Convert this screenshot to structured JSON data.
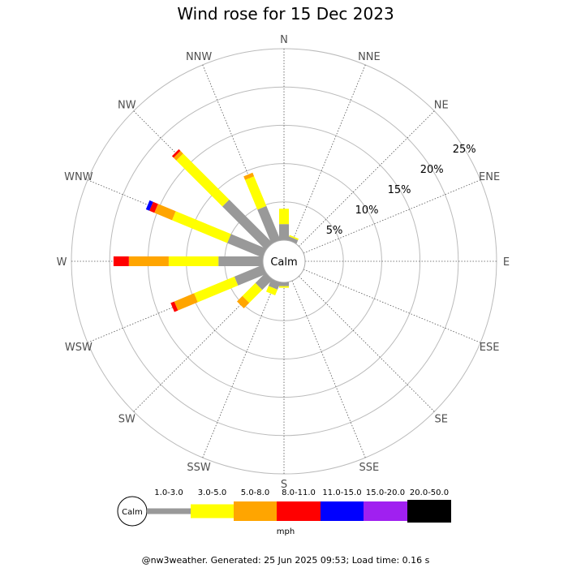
{
  "chart_data": {
    "type": "windrose",
    "title": "Wind rose for 15 Dec 2023",
    "center_label": "Calm",
    "directions": [
      "N",
      "NNE",
      "NE",
      "ENE",
      "E",
      "ESE",
      "SE",
      "SSE",
      "S",
      "SSW",
      "SW",
      "WSW",
      "W",
      "WNW",
      "NW",
      "NNW"
    ],
    "ring_labels": [
      "5%",
      "10%",
      "15%",
      "20%",
      "25%"
    ],
    "rmax": 25,
    "unit": "mph",
    "speed_bins": [
      {
        "label": "1.0-3.0",
        "color": "#999999"
      },
      {
        "label": "3.0-5.0",
        "color": "#ffff00"
      },
      {
        "label": "5.0-8.0",
        "color": "#ffa500"
      },
      {
        "label": "8.0-11.0",
        "color": "#ff0000"
      },
      {
        "label": "11.0-15.0",
        "color": "#0000ff"
      },
      {
        "label": "15.0-20.0",
        "color": "#a020f0"
      },
      {
        "label": "20.0-50.0",
        "color": "#000000"
      }
    ],
    "series": [
      {
        "direction": "N",
        "cumulative": [
          2.1,
          4.1,
          4.1
        ]
      },
      {
        "direction": "NNE",
        "cumulative": [
          0.5,
          0.7
        ]
      },
      {
        "direction": "NE",
        "cumulative": []
      },
      {
        "direction": "ENE",
        "cumulative": []
      },
      {
        "direction": "E",
        "cumulative": []
      },
      {
        "direction": "ESE",
        "cumulative": []
      },
      {
        "direction": "SE",
        "cumulative": []
      },
      {
        "direction": "SSE",
        "cumulative": []
      },
      {
        "direction": "S",
        "cumulative": [
          0.5,
          0.7
        ]
      },
      {
        "direction": "SSW",
        "cumulative": [
          1.0,
          1.8,
          1.8
        ]
      },
      {
        "direction": "SW",
        "cumulative": [
          1.9,
          4.3,
          5.3
        ]
      },
      {
        "direction": "WSW",
        "cumulative": [
          4.0,
          9.7,
          12.5,
          13.0
        ]
      },
      {
        "direction": "W",
        "cumulative": [
          5.8,
          12.3,
          17.5,
          19.5
        ]
      },
      {
        "direction": "WNW",
        "cumulative": [
          5.0,
          12.8,
          15.3,
          16.0,
          16.5
        ]
      },
      {
        "direction": "NW",
        "cumulative": [
          8.0,
          16.5,
          17.0,
          17.3
        ]
      },
      {
        "direction": "NNW",
        "cumulative": [
          4.8,
          9.0,
          9.5
        ]
      }
    ]
  },
  "footer": "@nw3weather. Generated: 25 Jun 2025 09:53; Load time: 0.16 s"
}
